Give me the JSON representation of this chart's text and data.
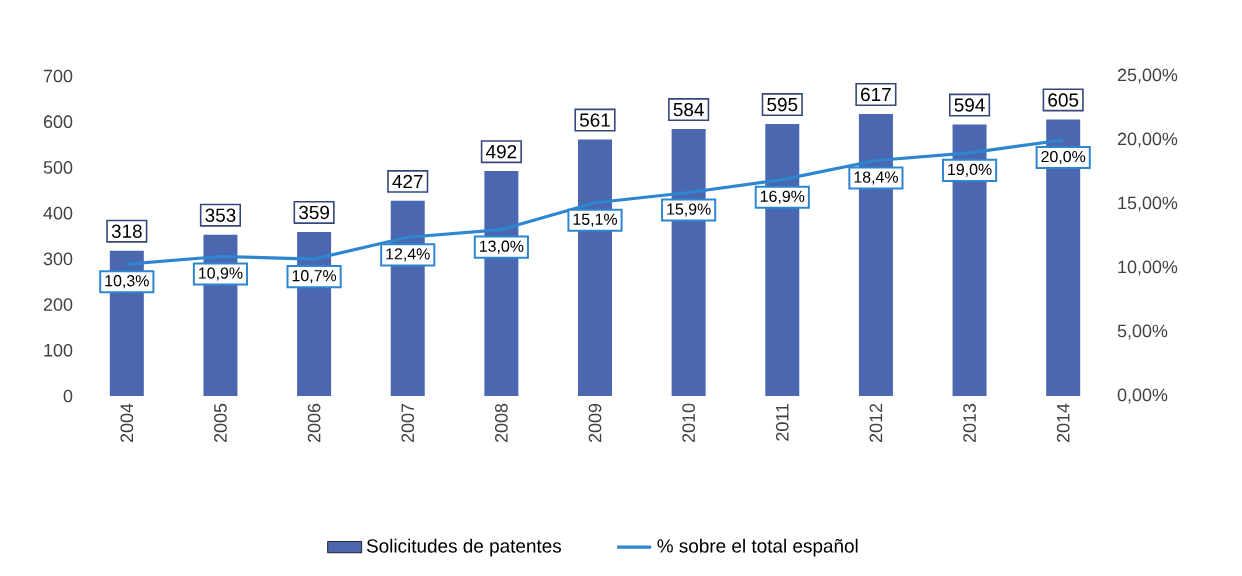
{
  "chart_data": {
    "type": "bar",
    "categories": [
      "2004",
      "2005",
      "2006",
      "2007",
      "2008",
      "2009",
      "2010",
      "2011",
      "2012",
      "2013",
      "2014"
    ],
    "series": [
      {
        "name": "Solicitudes de patentes",
        "axis": "y",
        "color": "#4a67b0",
        "values": [
          318,
          353,
          359,
          427,
          492,
          561,
          584,
          595,
          617,
          594,
          605
        ],
        "value_labels": [
          "318",
          "353",
          "359",
          "427",
          "492",
          "561",
          "584",
          "595",
          "617",
          "594",
          "605"
        ]
      },
      {
        "name": "% sobre el total español",
        "type": "line",
        "axis": "y2",
        "color": "#2e86d1",
        "values": [
          10.3,
          10.9,
          10.7,
          12.4,
          13.0,
          15.1,
          15.9,
          16.9,
          18.4,
          19.0,
          20.0
        ],
        "value_labels": [
          "10,3%",
          "10,9%",
          "10,7%",
          "12,4%",
          "13,0%",
          "15,1%",
          "15,9%",
          "16,9%",
          "18,4%",
          "19,0%",
          "20,0%"
        ]
      }
    ],
    "ylim": [
      0,
      700
    ],
    "yticks": [
      0,
      100,
      200,
      300,
      400,
      500,
      600,
      700
    ],
    "y2lim": [
      0,
      25
    ],
    "y2ticks": [
      {
        "value": 0,
        "label": "0,00%"
      },
      {
        "value": 5,
        "label": "5,00%"
      },
      {
        "value": 10,
        "label": "10,00%"
      },
      {
        "value": 15,
        "label": "15,00%"
      },
      {
        "value": 20,
        "label": "20,00%"
      },
      {
        "value": 25,
        "label": "25,00%"
      }
    ],
    "grid": false,
    "legend": "bottom",
    "marker": "none",
    "line_style": "solid"
  }
}
